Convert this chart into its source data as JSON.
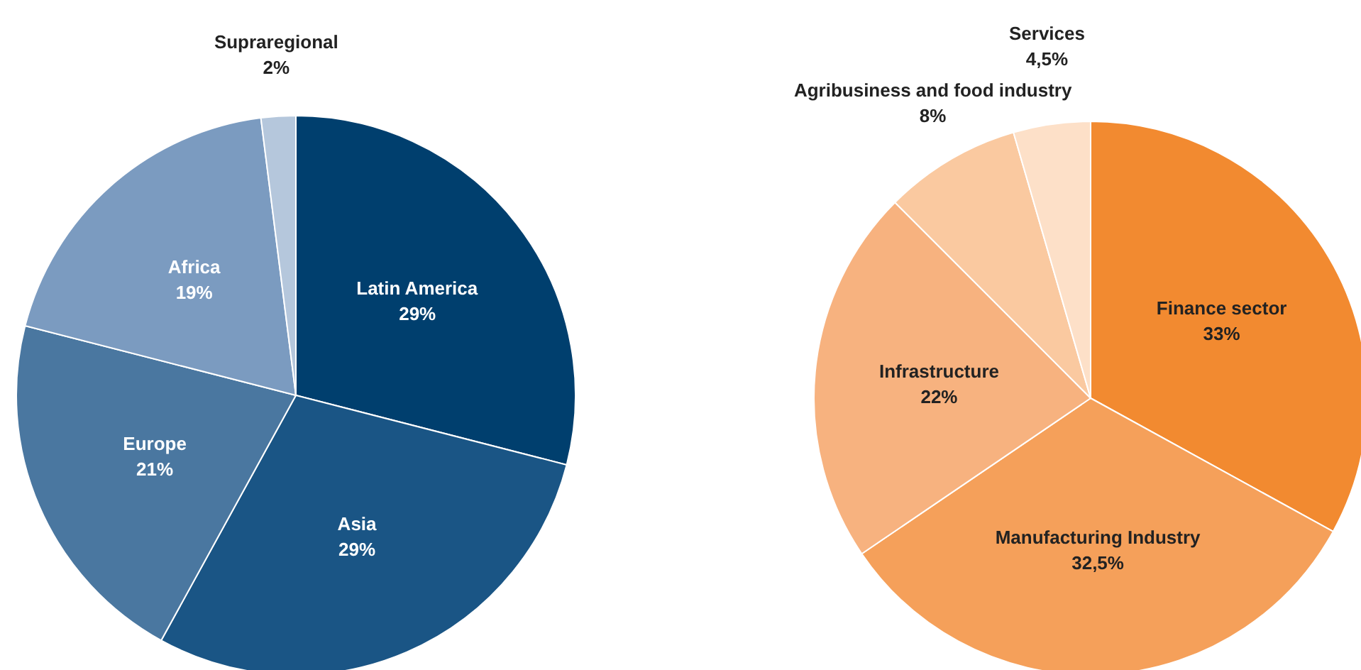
{
  "chart_data": [
    {
      "type": "pie",
      "categories": [
        "Latin America",
        "Asia",
        "Europe",
        "Africa",
        "Supraregional"
      ],
      "values": [
        29,
        29,
        21,
        19,
        2
      ],
      "value_labels": [
        "29%",
        "29%",
        "21%",
        "19%",
        "2%"
      ],
      "colors": [
        "#003f6e",
        "#1a5585",
        "#4a77a0",
        "#7b9bc0",
        "#b5c7dc"
      ]
    },
    {
      "type": "pie",
      "categories": [
        "Finance sector",
        "Manufacturing Industry",
        "Infrastructure",
        "Agribusiness and food industry",
        "Services"
      ],
      "values": [
        33,
        32.5,
        22,
        8,
        4.5
      ],
      "value_labels": [
        "33%",
        "32,5%",
        "22%",
        "8%",
        "4,5%"
      ],
      "colors": [
        "#f28a30",
        "#f5a05a",
        "#f7b27f",
        "#fac9a0",
        "#fde0c8"
      ]
    }
  ]
}
